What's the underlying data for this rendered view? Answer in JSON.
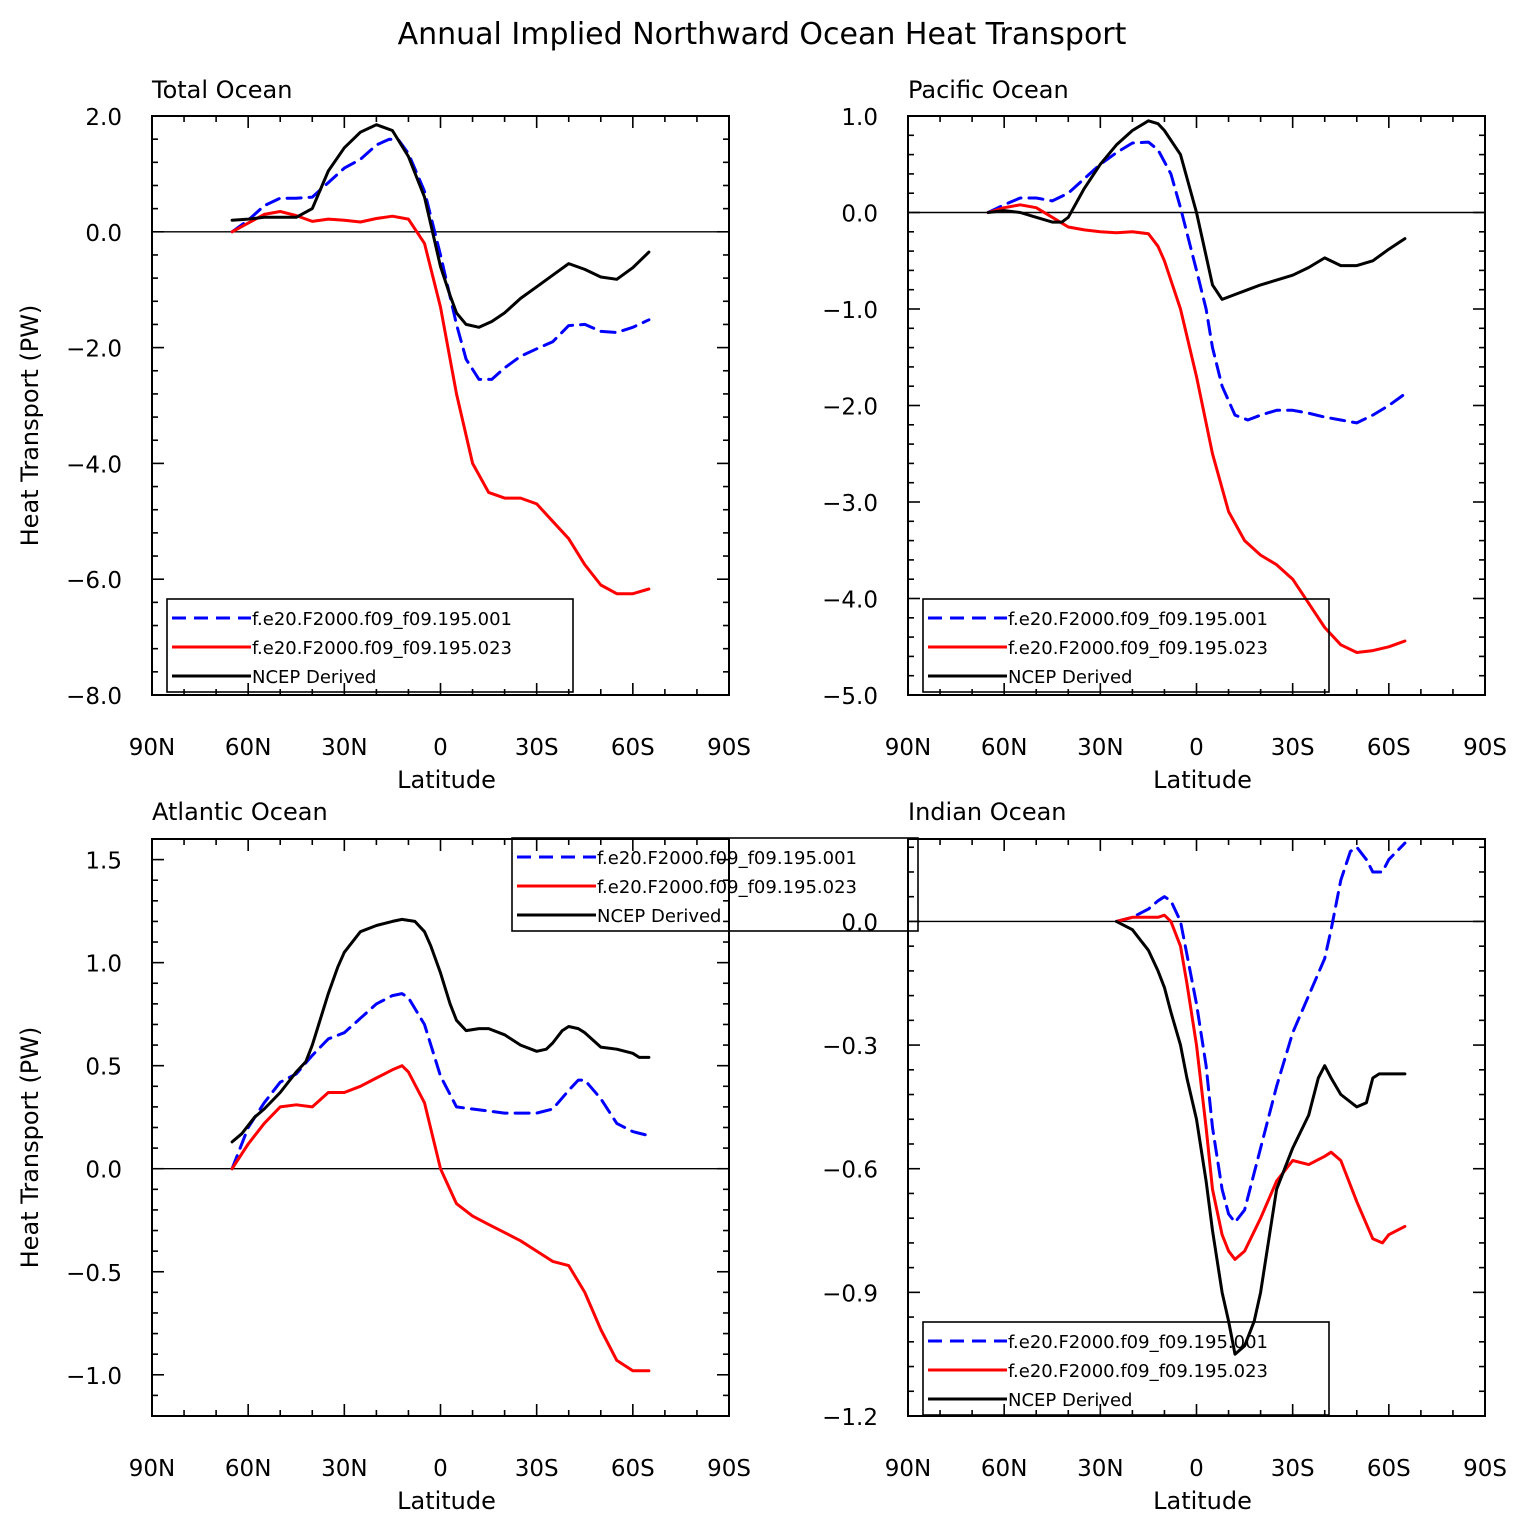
{
  "figure_title": "Annual Implied Northward Ocean Heat Transport",
  "colors": {
    "series_001": "#0000ff",
    "series_023": "#ff0000",
    "ncep": "#000000"
  },
  "chart_data": [
    {
      "type": "line",
      "title": "Total Ocean",
      "xlabel": "Latitude",
      "ylabel": "Heat Transport (PW)",
      "xlim": [
        90,
        -90
      ],
      "ylim": [
        -8.0,
        2.0
      ],
      "xticks": [
        90,
        60,
        30,
        0,
        -30,
        -60,
        -90
      ],
      "xtick_labels": [
        "90N",
        "60N",
        "30N",
        "0",
        "30S",
        "60S",
        "90S"
      ],
      "yticks": [
        -8.0,
        -6.0,
        -4.0,
        -2.0,
        0.0,
        2.0
      ],
      "ytick_labels": [
        "−8.0",
        "−6.0",
        "−4.0",
        "−2.0",
        "0.0",
        "2.0"
      ],
      "zero_line": true,
      "legend_position": "bottom-left",
      "series": [
        {
          "name": "f.e20.F2000.f09_f09.195.001",
          "style": "dashed",
          "color": "#0000ff",
          "x": [
            65,
            60,
            55,
            50,
            45,
            40,
            35,
            30,
            25,
            20,
            16,
            13,
            10,
            5,
            0,
            -5,
            -8,
            -12,
            -16,
            -20,
            -25,
            -30,
            -35,
            -40,
            -45,
            -50,
            -55,
            -60,
            -65
          ],
          "y": [
            0.0,
            0.2,
            0.45,
            0.58,
            0.58,
            0.6,
            0.85,
            1.1,
            1.25,
            1.5,
            1.6,
            1.58,
            1.35,
            0.7,
            -0.4,
            -1.6,
            -2.2,
            -2.55,
            -2.55,
            -2.35,
            -2.15,
            -2.02,
            -1.9,
            -1.62,
            -1.6,
            -1.72,
            -1.74,
            -1.65,
            -1.52
          ]
        },
        {
          "name": "f.e20.F2000.f09_f09.195.023",
          "style": "solid",
          "color": "#ff0000",
          "x": [
            65,
            60,
            55,
            50,
            45,
            40,
            35,
            30,
            25,
            20,
            15,
            10,
            5,
            0,
            -5,
            -10,
            -15,
            -20,
            -25,
            -30,
            -35,
            -40,
            -45,
            -50,
            -55,
            -60,
            -65
          ],
          "y": [
            0.0,
            0.15,
            0.3,
            0.35,
            0.28,
            0.18,
            0.22,
            0.2,
            0.17,
            0.23,
            0.27,
            0.22,
            -0.2,
            -1.3,
            -2.8,
            -4.0,
            -4.5,
            -4.6,
            -4.6,
            -4.7,
            -5.0,
            -5.3,
            -5.75,
            -6.1,
            -6.25,
            -6.25,
            -6.17
          ]
        },
        {
          "name": "NCEP Derived",
          "style": "solid",
          "color": "#000000",
          "x": [
            65,
            60,
            55,
            50,
            45,
            40,
            35,
            30,
            25,
            20,
            15,
            10,
            5,
            0,
            -3,
            -5,
            -8,
            -12,
            -16,
            -20,
            -25,
            -30,
            -35,
            -40,
            -45,
            -50,
            -55,
            -60,
            -65
          ],
          "y": [
            0.2,
            0.22,
            0.25,
            0.25,
            0.25,
            0.4,
            1.05,
            1.45,
            1.72,
            1.85,
            1.75,
            1.3,
            0.6,
            -0.6,
            -1.1,
            -1.4,
            -1.6,
            -1.65,
            -1.55,
            -1.4,
            -1.15,
            -0.95,
            -0.75,
            -0.55,
            -0.65,
            -0.78,
            -0.82,
            -0.62,
            -0.35
          ]
        }
      ]
    },
    {
      "type": "line",
      "title": "Pacific Ocean",
      "xlabel": "Latitude",
      "ylabel": "",
      "xlim": [
        90,
        -90
      ],
      "ylim": [
        -5.0,
        1.0
      ],
      "xticks": [
        90,
        60,
        30,
        0,
        -30,
        -60,
        -90
      ],
      "xtick_labels": [
        "90N",
        "60N",
        "30N",
        "0",
        "30S",
        "60S",
        "90S"
      ],
      "yticks": [
        -5.0,
        -4.0,
        -3.0,
        -2.0,
        -1.0,
        0.0,
        1.0
      ],
      "ytick_labels": [
        "−5.0",
        "−4.0",
        "−3.0",
        "−2.0",
        "−1.0",
        "0.0",
        "1.0"
      ],
      "zero_line": true,
      "legend_position": "bottom-left",
      "series": [
        {
          "name": "f.e20.F2000.f09_f09.195.001",
          "style": "dashed",
          "color": "#0000ff",
          "x": [
            65,
            60,
            55,
            50,
            45,
            40,
            35,
            30,
            25,
            20,
            15,
            12,
            8,
            5,
            0,
            -3,
            -5,
            -8,
            -12,
            -16,
            -20,
            -25,
            -30,
            -35,
            -40,
            -45,
            -50,
            -55,
            -60,
            -65
          ],
          "y": [
            0.0,
            0.08,
            0.15,
            0.15,
            0.12,
            0.2,
            0.35,
            0.5,
            0.62,
            0.72,
            0.73,
            0.65,
            0.4,
            0.05,
            -0.6,
            -1.0,
            -1.4,
            -1.8,
            -2.1,
            -2.15,
            -2.1,
            -2.05,
            -2.05,
            -2.08,
            -2.12,
            -2.15,
            -2.18,
            -2.1,
            -2.0,
            -1.88
          ]
        },
        {
          "name": "f.e20.F2000.f09_f09.195.023",
          "style": "solid",
          "color": "#ff0000",
          "x": [
            65,
            60,
            55,
            50,
            45,
            40,
            35,
            30,
            25,
            20,
            15,
            12,
            10,
            5,
            0,
            -5,
            -10,
            -15,
            -20,
            -25,
            -30,
            -35,
            -40,
            -45,
            -50,
            -55,
            -60,
            -65
          ],
          "y": [
            0.0,
            0.05,
            0.08,
            0.05,
            -0.05,
            -0.15,
            -0.18,
            -0.2,
            -0.21,
            -0.2,
            -0.22,
            -0.35,
            -0.5,
            -1.0,
            -1.7,
            -2.5,
            -3.1,
            -3.4,
            -3.55,
            -3.65,
            -3.8,
            -4.05,
            -4.3,
            -4.48,
            -4.56,
            -4.54,
            -4.5,
            -4.44
          ]
        },
        {
          "name": "NCEP Derived",
          "style": "solid",
          "color": "#000000",
          "x": [
            65,
            60,
            55,
            50,
            45,
            42,
            40,
            35,
            30,
            25,
            20,
            15,
            12,
            10,
            5,
            0,
            -3,
            -5,
            -8,
            -12,
            -16,
            -20,
            -25,
            -30,
            -35,
            -40,
            -45,
            -50,
            -55,
            -60,
            -65
          ],
          "y": [
            0.0,
            0.02,
            0.0,
            -0.05,
            -0.1,
            -0.1,
            -0.05,
            0.25,
            0.5,
            0.7,
            0.85,
            0.95,
            0.92,
            0.85,
            0.6,
            0.0,
            -0.45,
            -0.75,
            -0.9,
            -0.85,
            -0.8,
            -0.75,
            -0.7,
            -0.65,
            -0.57,
            -0.47,
            -0.55,
            -0.55,
            -0.5,
            -0.38,
            -0.27
          ]
        }
      ]
    },
    {
      "type": "line",
      "title": "Atlantic Ocean",
      "xlabel": "Latitude",
      "ylabel": "Heat Transport (PW)",
      "xlim": [
        90,
        -90
      ],
      "ylim": [
        -1.2,
        1.6
      ],
      "xticks": [
        90,
        60,
        30,
        0,
        -30,
        -60,
        -90
      ],
      "xtick_labels": [
        "90N",
        "60N",
        "30N",
        "0",
        "30S",
        "60S",
        "90S"
      ],
      "yticks": [
        -1.0,
        -0.5,
        0.0,
        0.5,
        1.0,
        1.5
      ],
      "ytick_labels": [
        "−1.0",
        "−0.5",
        "0.0",
        "0.5",
        "1.0",
        "1.5"
      ],
      "zero_line": true,
      "legend_position": "top-right",
      "series": [
        {
          "name": "f.e20.F2000.f09_f09.195.001",
          "style": "dashed",
          "color": "#0000ff",
          "x": [
            65,
            60,
            55,
            50,
            45,
            40,
            35,
            30,
            25,
            20,
            15,
            12,
            10,
            5,
            0,
            -5,
            -10,
            -15,
            -20,
            -25,
            -30,
            -35,
            -40,
            -43,
            -45,
            -50,
            -55,
            -60,
            -65
          ],
          "y": [
            0.0,
            0.2,
            0.32,
            0.42,
            0.46,
            0.55,
            0.63,
            0.66,
            0.73,
            0.8,
            0.84,
            0.85,
            0.83,
            0.7,
            0.45,
            0.3,
            0.29,
            0.28,
            0.27,
            0.27,
            0.27,
            0.29,
            0.38,
            0.43,
            0.43,
            0.34,
            0.22,
            0.18,
            0.16
          ]
        },
        {
          "name": "f.e20.F2000.f09_f09.195.023",
          "style": "solid",
          "color": "#ff0000",
          "x": [
            65,
            60,
            55,
            50,
            45,
            40,
            35,
            30,
            25,
            20,
            15,
            12,
            10,
            5,
            0,
            -5,
            -10,
            -15,
            -20,
            -25,
            -30,
            -35,
            -40,
            -45,
            -50,
            -55,
            -60,
            -65
          ],
          "y": [
            0.0,
            0.12,
            0.22,
            0.3,
            0.31,
            0.3,
            0.37,
            0.37,
            0.4,
            0.44,
            0.48,
            0.5,
            0.47,
            0.32,
            0.0,
            -0.17,
            -0.23,
            -0.27,
            -0.31,
            -0.35,
            -0.4,
            -0.45,
            -0.47,
            -0.6,
            -0.78,
            -0.93,
            -0.98,
            -0.98
          ]
        },
        {
          "name": "NCEP Derived",
          "style": "solid",
          "color": "#000000",
          "x": [
            65,
            62,
            58,
            55,
            50,
            45,
            42,
            40,
            38,
            35,
            32,
            30,
            25,
            20,
            15,
            12,
            8,
            5,
            3,
            0,
            -3,
            -5,
            -8,
            -12,
            -15,
            -20,
            -25,
            -30,
            -33,
            -35,
            -38,
            -40,
            -43,
            -45,
            -50,
            -55,
            -60,
            -62,
            -65
          ],
          "y": [
            0.13,
            0.17,
            0.25,
            0.29,
            0.37,
            0.47,
            0.52,
            0.6,
            0.7,
            0.85,
            0.98,
            1.05,
            1.15,
            1.18,
            1.2,
            1.21,
            1.2,
            1.15,
            1.08,
            0.95,
            0.8,
            0.72,
            0.67,
            0.68,
            0.68,
            0.65,
            0.6,
            0.57,
            0.58,
            0.61,
            0.67,
            0.69,
            0.68,
            0.66,
            0.59,
            0.58,
            0.56,
            0.54,
            0.54
          ]
        }
      ]
    },
    {
      "type": "line",
      "title": "Indian Ocean",
      "xlabel": "Latitude",
      "ylabel": "",
      "xlim": [
        90,
        -90
      ],
      "ylim": [
        -1.2,
        0.2
      ],
      "xticks": [
        90,
        60,
        30,
        0,
        -30,
        -60,
        -90
      ],
      "xtick_labels": [
        "90N",
        "60N",
        "30N",
        "0",
        "30S",
        "60S",
        "90S"
      ],
      "yticks": [
        -1.2,
        -0.9,
        -0.6,
        -0.3,
        0.0
      ],
      "ytick_labels": [
        "−1.2",
        "−0.9",
        "−0.6",
        "−0.3",
        "0.0"
      ],
      "zero_line": true,
      "legend_position": "bottom-left",
      "series": [
        {
          "name": "f.e20.F2000.f09_f09.195.001",
          "style": "dashed",
          "color": "#0000ff",
          "x": [
            25,
            20,
            15,
            12,
            10,
            8,
            5,
            3,
            0,
            -3,
            -5,
            -8,
            -10,
            -12,
            -15,
            -20,
            -25,
            -30,
            -35,
            -40,
            -42,
            -45,
            -48,
            -50,
            -53,
            -55,
            -58,
            -60,
            -65
          ],
          "y": [
            0.0,
            0.01,
            0.03,
            0.05,
            0.06,
            0.05,
            0.0,
            -0.08,
            -0.2,
            -0.35,
            -0.5,
            -0.65,
            -0.71,
            -0.73,
            -0.7,
            -0.55,
            -0.4,
            -0.27,
            -0.18,
            -0.09,
            -0.02,
            0.1,
            0.17,
            0.18,
            0.15,
            0.12,
            0.12,
            0.15,
            0.19
          ]
        },
        {
          "name": "f.e20.F2000.f09_f09.195.023",
          "style": "solid",
          "color": "#ff0000",
          "x": [
            25,
            20,
            15,
            12,
            10,
            8,
            5,
            3,
            0,
            -3,
            -5,
            -8,
            -10,
            -12,
            -15,
            -20,
            -25,
            -30,
            -35,
            -40,
            -42,
            -45,
            -50,
            -55,
            -58,
            -60,
            -65
          ],
          "y": [
            0.0,
            0.01,
            0.01,
            0.01,
            0.015,
            0.0,
            -0.06,
            -0.15,
            -0.3,
            -0.5,
            -0.65,
            -0.76,
            -0.8,
            -0.82,
            -0.8,
            -0.72,
            -0.63,
            -0.58,
            -0.59,
            -0.57,
            -0.56,
            -0.58,
            -0.68,
            -0.77,
            -0.78,
            -0.76,
            -0.74
          ]
        },
        {
          "name": "NCEP Derived",
          "style": "solid",
          "color": "#000000",
          "x": [
            25,
            20,
            15,
            12,
            10,
            8,
            5,
            3,
            0,
            -3,
            -5,
            -8,
            -10,
            -12,
            -15,
            -18,
            -20,
            -22,
            -25,
            -30,
            -35,
            -38,
            -40,
            -42,
            -45,
            -50,
            -53,
            -55,
            -57,
            -60,
            -65
          ],
          "y": [
            0.0,
            -0.02,
            -0.07,
            -0.12,
            -0.16,
            -0.22,
            -0.3,
            -0.38,
            -0.48,
            -0.63,
            -0.75,
            -0.9,
            -0.97,
            -1.05,
            -1.03,
            -0.97,
            -0.9,
            -0.8,
            -0.65,
            -0.55,
            -0.47,
            -0.38,
            -0.35,
            -0.38,
            -0.42,
            -0.45,
            -0.44,
            -0.38,
            -0.37,
            -0.37,
            -0.37
          ]
        }
      ]
    }
  ]
}
